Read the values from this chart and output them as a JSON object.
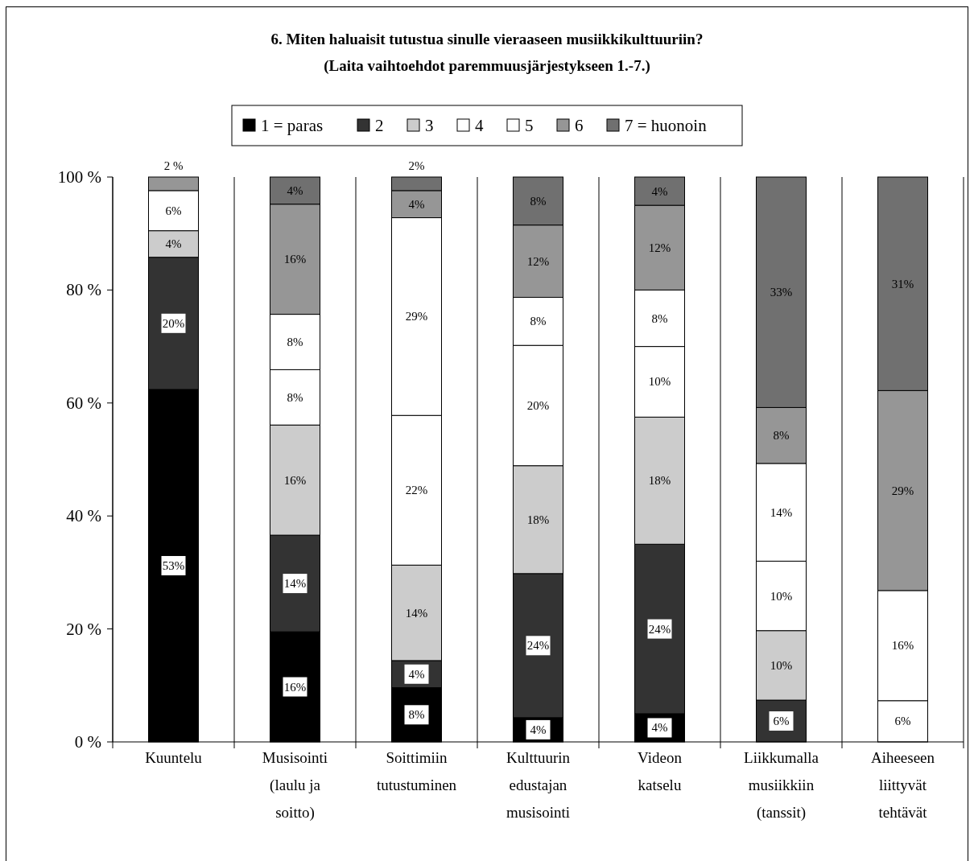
{
  "chart_data": {
    "type": "bar",
    "stacked": true,
    "title": "6. Miten haluaisit tutustua sinulle vieraaseen musiikkikulttuuriin?",
    "subtitle": "(Laita vaihtoehdot paremmuusjärjestykseen 1.-7.)",
    "categories": [
      "Kuuntelu",
      "Musisointi (laulu ja soitto)",
      "Soittimiin tutustuminen",
      "Kulttuurin edustajan musisointi",
      "Videon katselu",
      "Liikkumalla musiikkiin (tanssit)",
      "Aiheeseen liittyvät tehtävät"
    ],
    "series": [
      {
        "name": "1 = paras",
        "color": "#000000",
        "values": [
          62.4,
          19.5,
          9.6,
          4.3,
          5,
          null,
          null
        ]
      },
      {
        "name": "2",
        "color": "#333333",
        "values": [
          23.4,
          17.1,
          4.8,
          25.5,
          30,
          7.4,
          null
        ]
      },
      {
        "name": "3",
        "color": "#cccccc",
        "values": [
          4.7,
          19.5,
          16.9,
          19.1,
          22.5,
          12.3,
          null
        ]
      },
      {
        "name": "4",
        "color": "#ffffff",
        "values": [
          7.1,
          9.8,
          26.5,
          21.3,
          12.5,
          12.3,
          7.3
        ]
      },
      {
        "name": "5",
        "color": "#ffffff",
        "values": [
          null,
          9.8,
          35.0,
          8.5,
          10,
          17.3,
          19.5
        ]
      },
      {
        "name": "6",
        "color": "#969696",
        "values": [
          2.4,
          19.5,
          4.8,
          12.8,
          15,
          9.9,
          35.4
        ]
      },
      {
        "name": "7 = huonoin",
        "color": "#707070",
        "values": [
          null,
          4.8,
          2.4,
          8.5,
          5,
          40.8,
          37.8
        ]
      }
    ],
    "annotations": [
      "53%",
      "20%",
      "4%",
      "6%",
      "2 %",
      "16%",
      "14%",
      "16%",
      "8%",
      "8%",
      "16%",
      "4%",
      "8%",
      "4%",
      "14%",
      "22%",
      "29%",
      "4%",
      "2%",
      "4%",
      "24%",
      "18%",
      "20%",
      "8%",
      "12%",
      "8%",
      "4%",
      "24%",
      "18%",
      "10%",
      "8%",
      "12%",
      "4%",
      "6%",
      "10%",
      "10%",
      "14%",
      "8%",
      "33%",
      "6%",
      "16%",
      "29%",
      "31%"
    ],
    "ylim": [
      0,
      100
    ],
    "yticks": [
      {
        "value": 0,
        "label": "0 %"
      },
      {
        "value": 20,
        "label": "20 %"
      },
      {
        "value": 40,
        "label": "40 %"
      },
      {
        "value": 60,
        "label": "60 %"
      },
      {
        "value": 80,
        "label": "80 %"
      },
      {
        "value": 100,
        "label": "100 %"
      }
    ],
    "grid": "x",
    "legend": "top"
  }
}
